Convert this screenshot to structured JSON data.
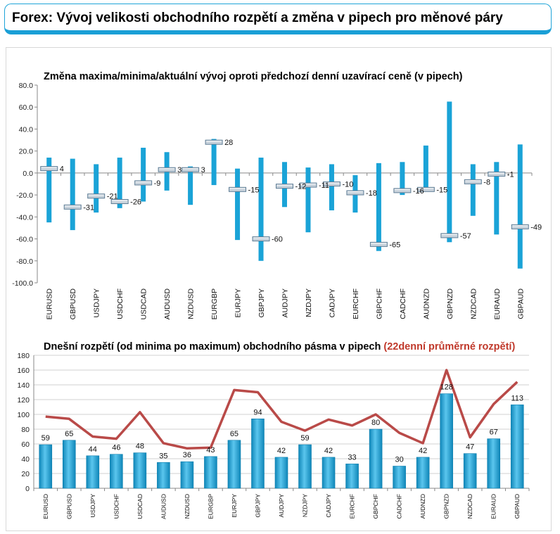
{
  "header": {
    "title": "Forex: Vývoj velikosti obchodního rozpětí a změna v pipech pro měnové páry"
  },
  "colors": {
    "bar": "#1aa3d7",
    "bar_light": "#5bc6ee",
    "line": "#b94a48",
    "accent_red": "#c0392b",
    "marker": "#c9d3dc"
  },
  "chart_data": [
    {
      "type": "bar",
      "title": "Změna maxima/minima/aktuální vývoj oproti předchozí denní uzavírací ceně (v pipech)",
      "categories": [
        "EURUSD",
        "GBPUSD",
        "USDJPY",
        "USDCHF",
        "USDCAD",
        "AUDUSD",
        "NZDUSD",
        "EURGBP",
        "EURJPY",
        "GBPJPY",
        "AUDJPY",
        "NZDJPY",
        "CADJPY",
        "EURCHF",
        "GBPCHF",
        "CADCHF",
        "AUDNZD",
        "GBPNZD",
        "NZDCAD",
        "EURAUD",
        "GBPAUD"
      ],
      "high": [
        14,
        13,
        8,
        14,
        23,
        19,
        6,
        31,
        4,
        14,
        10,
        5,
        8,
        -2,
        9,
        10,
        25,
        65,
        8,
        10,
        26
      ],
      "low": [
        -45,
        -52,
        -36,
        -32,
        -26,
        -16,
        -29,
        -11,
        -61,
        -80,
        -31,
        -54,
        -34,
        -36,
        -71,
        -20,
        -16,
        -63,
        -39,
        -56,
        -87
      ],
      "current": [
        4,
        -31,
        -21,
        -26,
        -9,
        3,
        3,
        28,
        -15,
        -60,
        -12,
        -11,
        -10,
        -18,
        -65,
        -16,
        -15,
        -57,
        -8,
        -1,
        -49
      ],
      "labels": [
        "4",
        "-31",
        "-21",
        "-26",
        "-9",
        "3",
        "3",
        "28",
        "-15",
        "-60",
        "-12",
        "-11",
        "-10",
        "-18",
        "-65",
        "-16",
        "-15",
        "-57",
        "-8",
        "-1",
        "-49"
      ],
      "ylim": [
        -100,
        80
      ],
      "yticks": [
        "80.0",
        "60.0",
        "40.0",
        "20.0",
        "0.0",
        "-20.0",
        "-40.0",
        "-60.0",
        "-80.0",
        "-100.0"
      ],
      "grid": false
    },
    {
      "type": "bar",
      "title": "Dnešní rozpětí (od minima po maximum) obchodního pásma v pipech",
      "title_highlight": "(22denní průměrné rozpětí)",
      "categories": [
        "EURUSD",
        "GBPUSD",
        "USDJPY",
        "USDCHF",
        "USDCAD",
        "AUDUSD",
        "NZDUSD",
        "EURGBP",
        "EURJPY",
        "GBPJPY",
        "AUDJPY",
        "NZDJPY",
        "CADJPY",
        "EURCHF",
        "GBPCHF",
        "CADCHF",
        "AUDNZD",
        "GBPNZD",
        "NZDCAD",
        "EURAUD",
        "GBPAUD"
      ],
      "values": [
        59,
        65,
        44,
        46,
        48,
        35,
        36,
        43,
        65,
        94,
        42,
        59,
        42,
        33,
        80,
        30,
        42,
        128,
        47,
        67,
        113
      ],
      "labels": [
        "59",
        "65",
        "44",
        "46",
        "48",
        "35",
        "36",
        "43",
        "65",
        "94",
        "42",
        "59",
        "42",
        "33",
        "80",
        "30",
        "42",
        "128",
        "47",
        "67",
        "113"
      ],
      "line": [
        97,
        94,
        70,
        67,
        103,
        61,
        54,
        55,
        133,
        130,
        90,
        78,
        93,
        85,
        100,
        75,
        61,
        160,
        69,
        114,
        144
      ],
      "ylim": [
        0,
        180
      ],
      "yticks": [
        "180",
        "160",
        "140",
        "120",
        "100",
        "80",
        "60",
        "40",
        "20",
        "0"
      ],
      "grid": true
    }
  ]
}
